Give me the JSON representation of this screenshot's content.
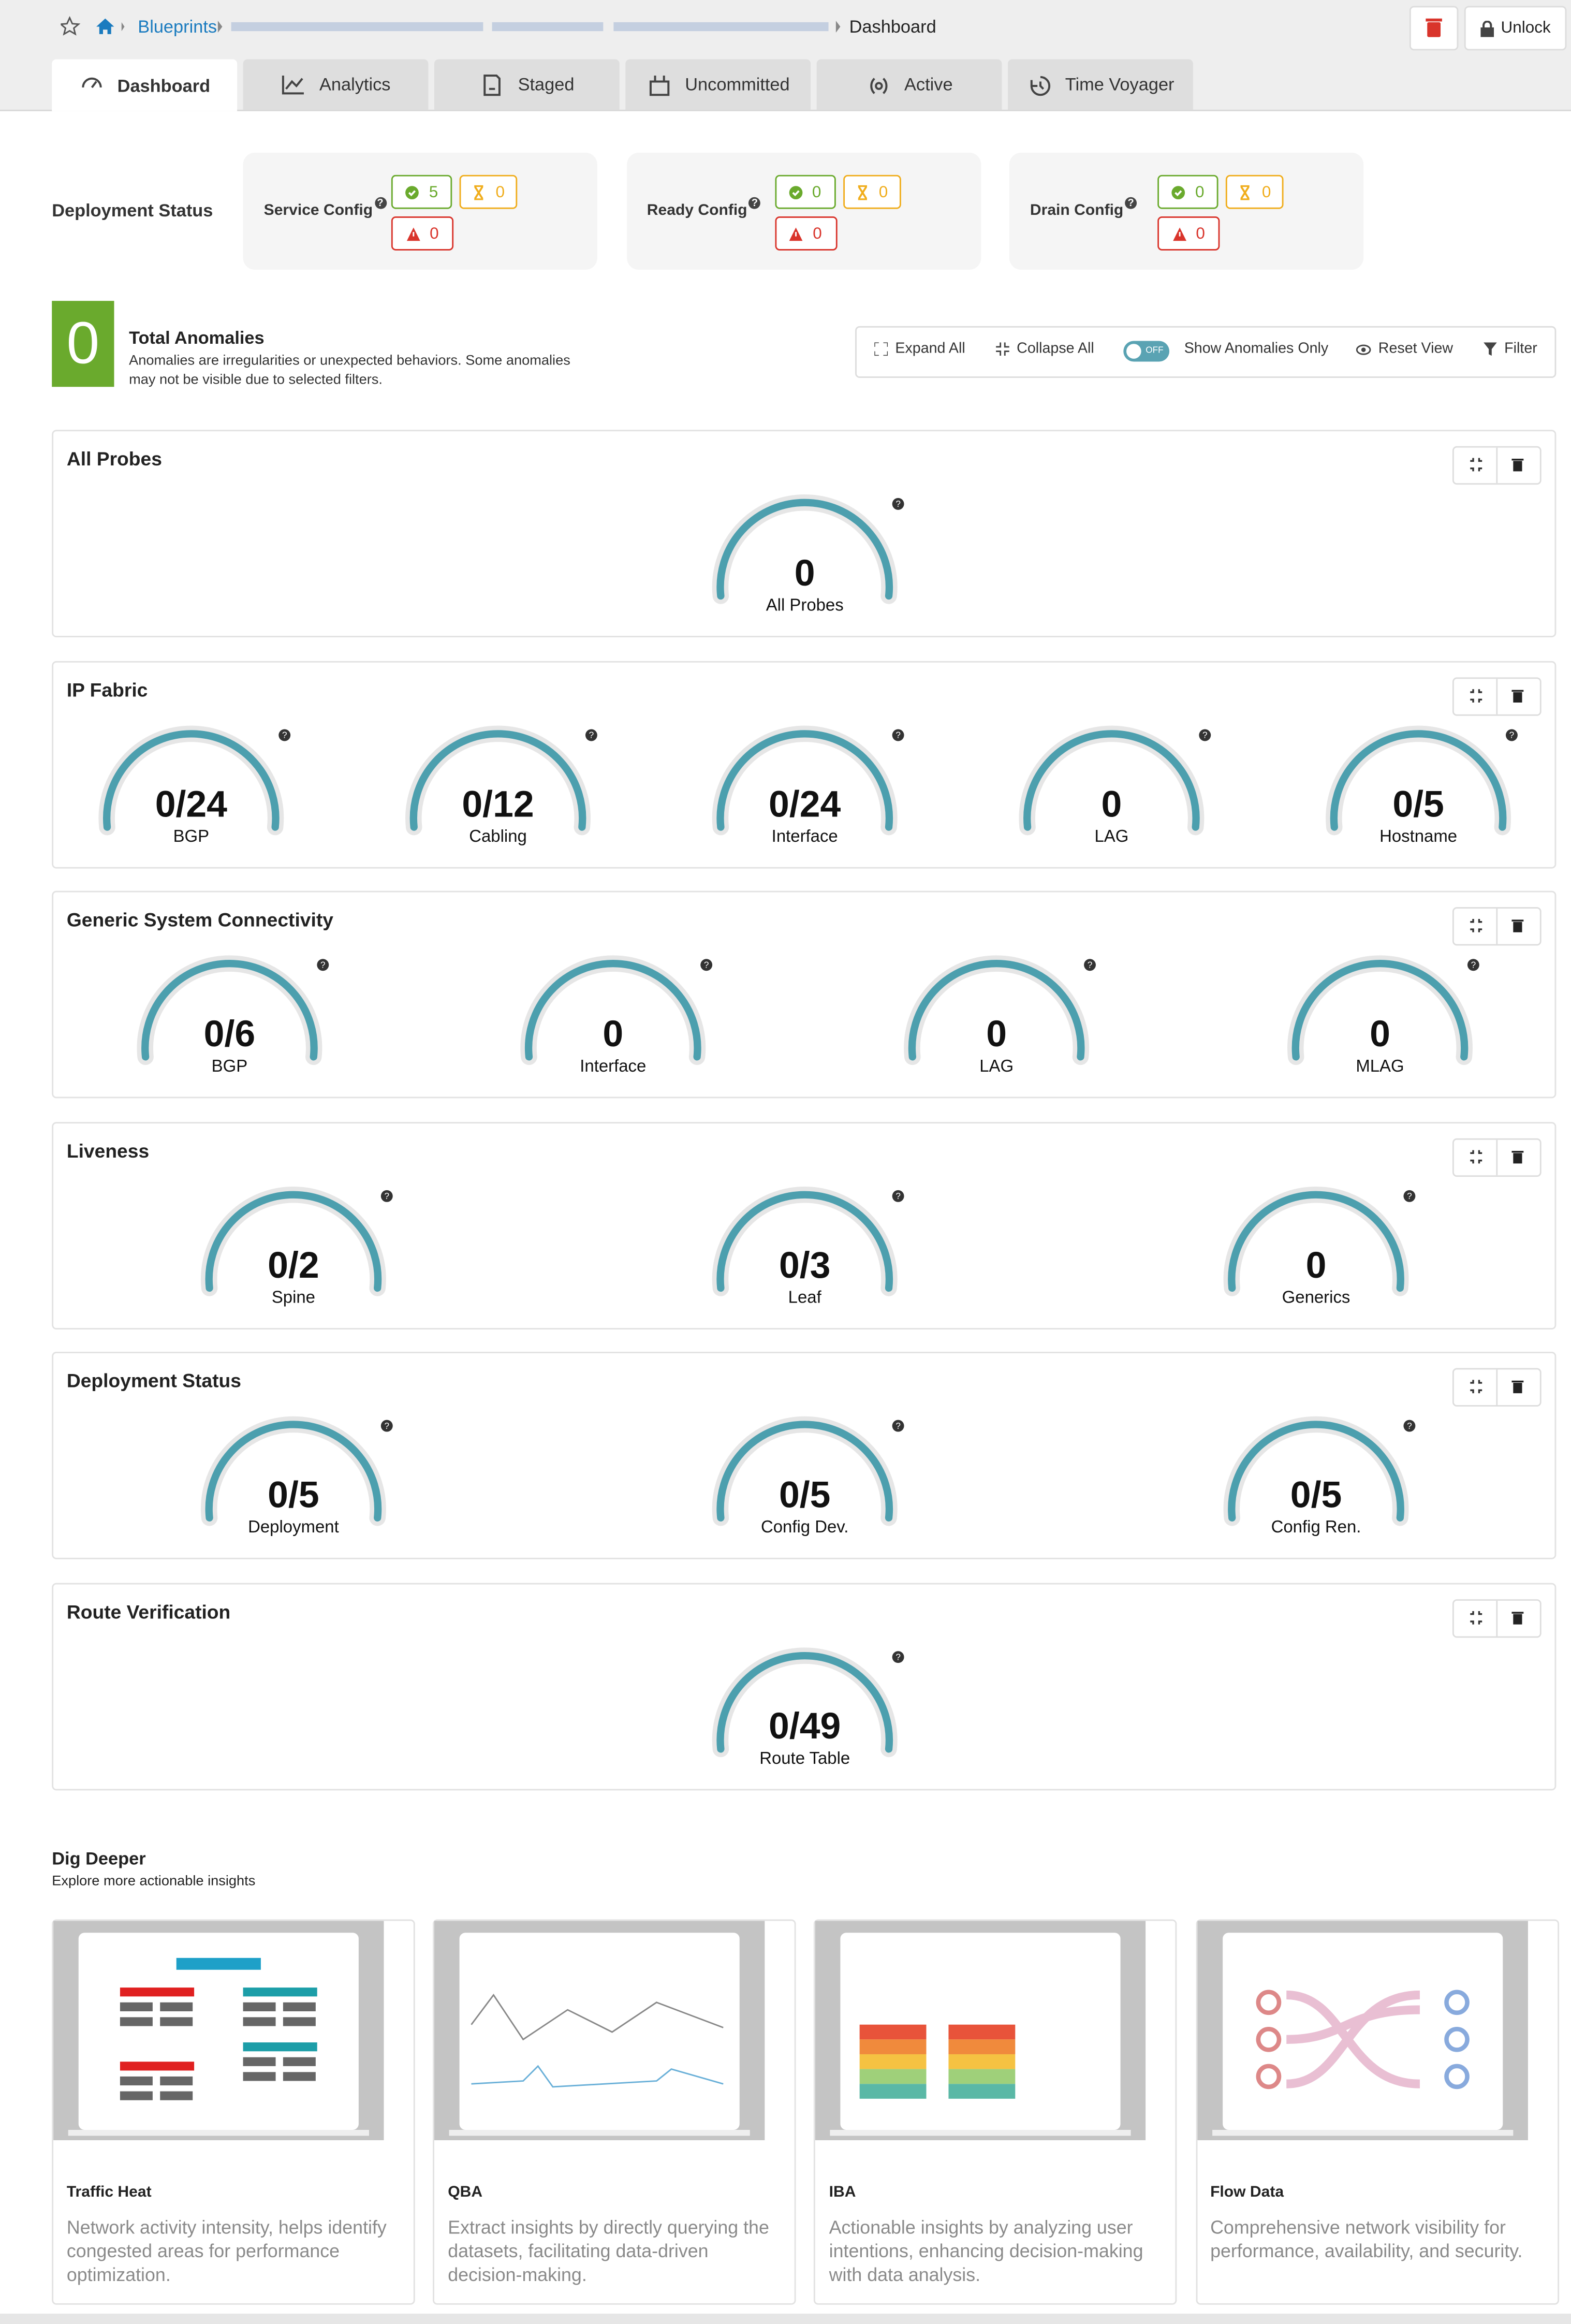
{
  "breadcrumb": {
    "root": "Blueprints",
    "current": "Dashboard"
  },
  "header_buttons": {
    "unlock": "Unlock"
  },
  "tabs": [
    "Dashboard",
    "Analytics",
    "Staged",
    "Uncommitted",
    "Active",
    "Time Voyager"
  ],
  "deployment_status": {
    "title": "Deployment Status",
    "cards": [
      {
        "label": "Service Config",
        "ok": 5,
        "pending": 0,
        "error": 0
      },
      {
        "label": "Ready Config",
        "ok": 0,
        "pending": 0,
        "error": 0
      },
      {
        "label": "Drain Config",
        "ok": 0,
        "pending": 0,
        "error": 0
      }
    ]
  },
  "anomalies": {
    "count": 0,
    "title": "Total Anomalies",
    "description": "Anomalies are irregularities or unexpected behaviors. Some anomalies may not be visible due to selected filters."
  },
  "toolbar": {
    "expand": "Expand All",
    "collapse": "Collapse All",
    "toggle": "OFF",
    "anomalies_only": "Show Anomalies Only",
    "reset": "Reset View",
    "filter": "Filter"
  },
  "panels": [
    {
      "title": "All Probes",
      "gauges": [
        {
          "value": 0,
          "label": "All Probes"
        }
      ]
    },
    {
      "title": "IP Fabric",
      "gauges": [
        {
          "value": "0/24",
          "label": "BGP"
        },
        {
          "value": "0/12",
          "label": "Cabling"
        },
        {
          "value": "0/24",
          "label": "Interface"
        },
        {
          "value": 0,
          "label": "LAG"
        },
        {
          "value": "0/5",
          "label": "Hostname"
        }
      ]
    },
    {
      "title": "Generic System Connectivity",
      "gauges": [
        {
          "value": "0/6",
          "label": "BGP"
        },
        {
          "value": 0,
          "label": "Interface"
        },
        {
          "value": 0,
          "label": "LAG"
        },
        {
          "value": 0,
          "label": "MLAG"
        }
      ]
    },
    {
      "title": "Liveness",
      "gauges": [
        {
          "value": "0/2",
          "label": "Spine"
        },
        {
          "value": "0/3",
          "label": "Leaf"
        },
        {
          "value": 0,
          "label": "Generics"
        }
      ]
    },
    {
      "title": "Deployment Status",
      "gauges": [
        {
          "value": "0/5",
          "label": "Deployment"
        },
        {
          "value": "0/5",
          "label": "Config Dev."
        },
        {
          "value": "0/5",
          "label": "Config Ren."
        }
      ]
    },
    {
      "title": "Route Verification",
      "gauges": [
        {
          "value": "0/49",
          "label": "Route Table"
        }
      ]
    }
  ],
  "dig_deeper": {
    "title": "Dig Deeper",
    "subtitle": "Explore more actionable insights",
    "cards": [
      {
        "title": "Traffic Heat",
        "description": "Network activity intensity, helps identify congested areas for performance optimization."
      },
      {
        "title": "QBA",
        "description": "Extract insights by directly querying the datasets, facilitating data-driven decision-making."
      },
      {
        "title": "IBA",
        "description": "Actionable insights by analyzing user intentions, enhancing decision-making with data analysis."
      },
      {
        "title": "Flow Data",
        "description": "Comprehensive network visibility for performance, availability, and security."
      }
    ]
  }
}
